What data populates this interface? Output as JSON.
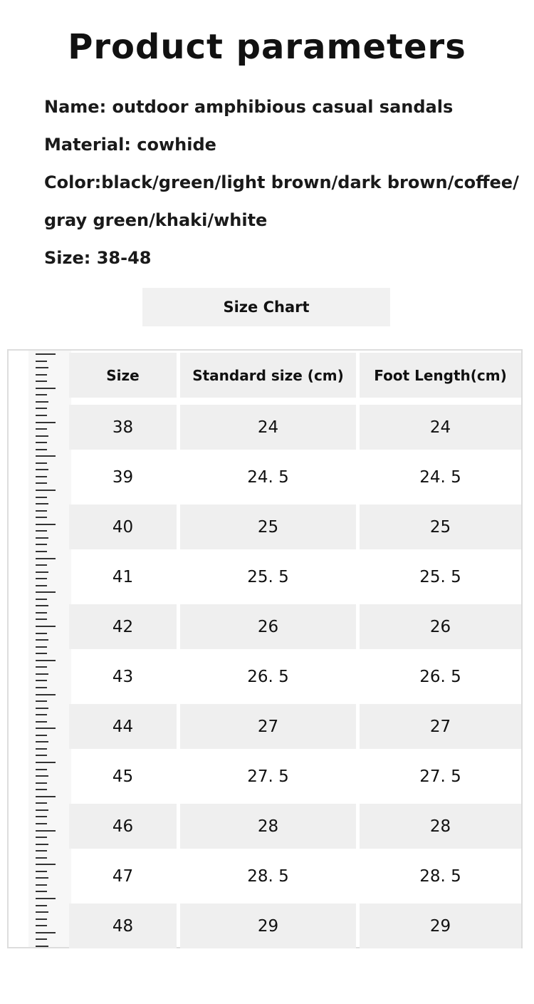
{
  "title": "Product parameters",
  "params": [
    "Name: outdoor amphibious casual sandals",
    "Material: cowhide",
    "Color:black/green/light brown/dark brown/coffee/",
    "gray green/khaki/white",
    "Size: 38-48"
  ],
  "size_chart_label": "Size Chart",
  "table": {
    "headers": [
      "Size",
      "Standard size (cm)",
      "Foot Length(cm)"
    ],
    "rows": [
      [
        "38",
        "24",
        "24"
      ],
      [
        "39",
        "24. 5",
        "24. 5"
      ],
      [
        "40",
        "25",
        "25"
      ],
      [
        "41",
        "25. 5",
        "25. 5"
      ],
      [
        "42",
        "26",
        "26"
      ],
      [
        "43",
        "26. 5",
        "26. 5"
      ],
      [
        "44",
        "27",
        "27"
      ],
      [
        "45",
        "27. 5",
        "27. 5"
      ],
      [
        "46",
        "28",
        "28"
      ],
      [
        "47",
        "28. 5",
        "28. 5"
      ],
      [
        "48",
        "29",
        "29"
      ]
    ]
  }
}
